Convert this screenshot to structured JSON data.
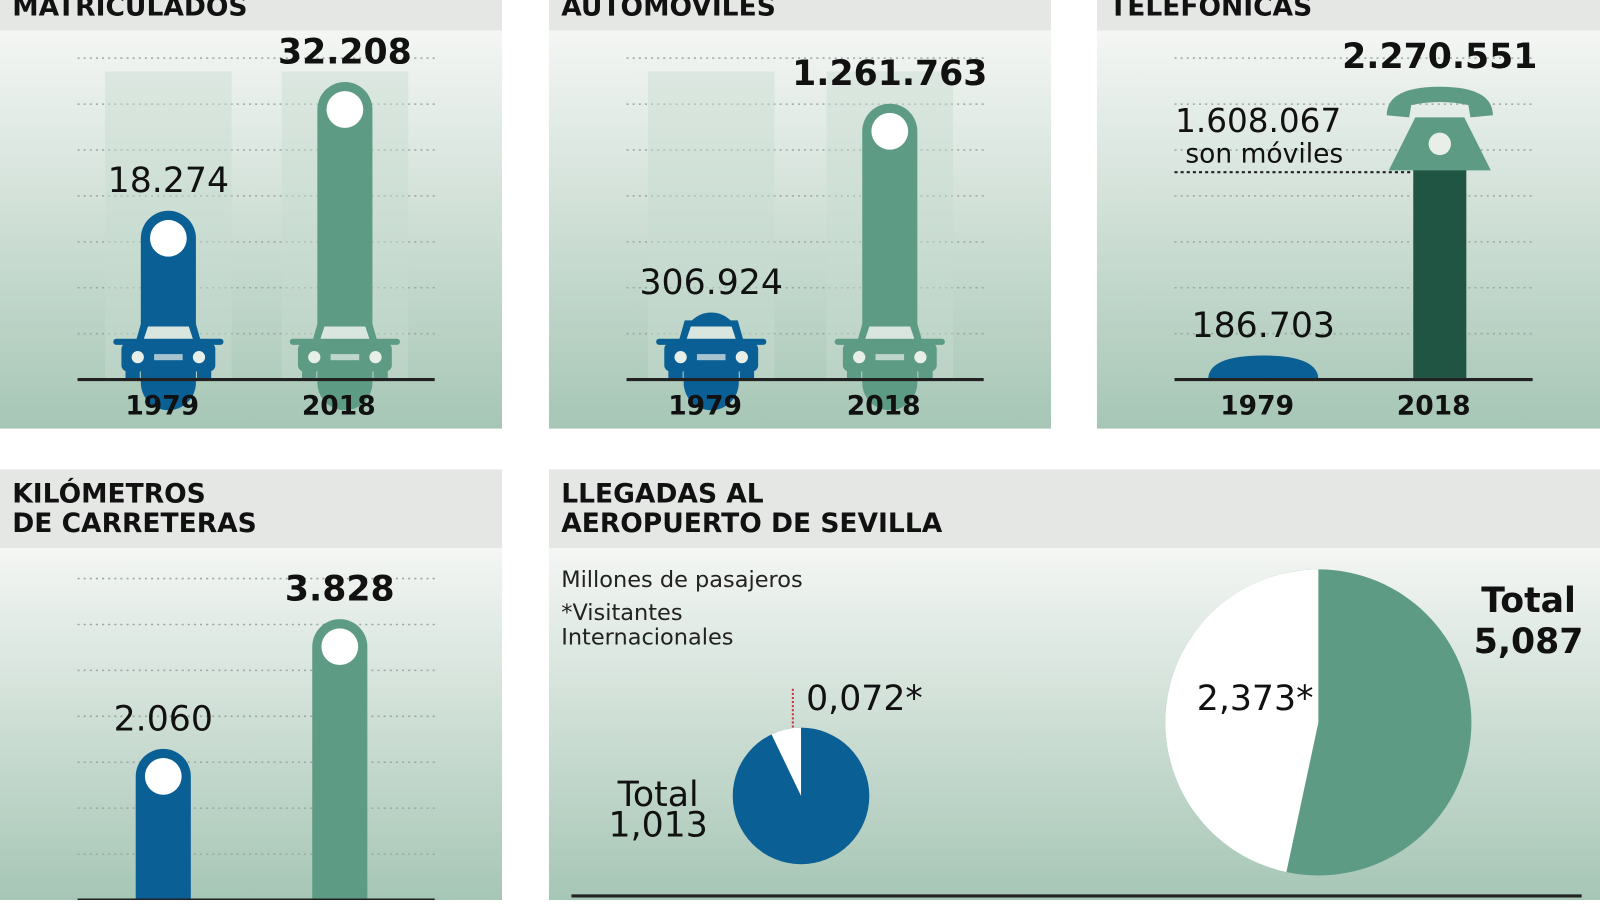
{
  "chart_data": [
    {
      "type": "bar",
      "title": [
        "MATRICULADOS"
      ],
      "categories": [
        "1979",
        "2018"
      ],
      "values": [
        18274,
        32208
      ],
      "value_labels": [
        "18.274",
        "32.208"
      ],
      "colors": [
        "#0a5f94",
        "#5e9b85"
      ],
      "ylim": [
        0,
        36000
      ]
    },
    {
      "type": "bar",
      "title": [
        "AUTOMOVILES"
      ],
      "categories": [
        "1979",
        "2018"
      ],
      "values": [
        306924,
        1261763
      ],
      "value_labels": [
        "306.924",
        "1.261.763"
      ],
      "colors": [
        "#0a5f94",
        "#5e9b85"
      ],
      "ylim": [
        0,
        1400000
      ]
    },
    {
      "type": "bar",
      "title": [
        "TELEFONICAS"
      ],
      "categories": [
        "1979",
        "2018"
      ],
      "values": [
        186703,
        2270551
      ],
      "value_labels": [
        "186.703",
        "2.270.551"
      ],
      "colors": [
        "#0a5f94",
        "#1f5542"
      ],
      "ylim": [
        0,
        2500000
      ],
      "reference": {
        "value": 1608067,
        "value_label": "1.608.067",
        "text": "son móviles"
      }
    },
    {
      "type": "bar",
      "title": [
        "KILÓMETROS",
        "DE CARRETERAS"
      ],
      "categories": [
        null,
        null
      ],
      "values": [
        2060,
        3828
      ],
      "value_labels": [
        "2.060",
        "3.828"
      ],
      "colors": [
        "#0a5f94",
        "#5e9b85"
      ],
      "ylim": [
        0,
        4200
      ]
    },
    {
      "type": "pie",
      "title": [
        "LLEGADAS AL",
        "AEROPUERTO DE SEVILLA"
      ],
      "subtitle": "Millones de pasajeros",
      "note": [
        "*Visitantes",
        "Internacionales"
      ],
      "total_text": "Total",
      "pies": [
        {
          "total": 1.013,
          "total_label": "1,013",
          "international": 0.072,
          "international_label": "0,072*",
          "color": "#0a5f94"
        },
        {
          "total": 5.087,
          "total_label": "5,087",
          "international": 2.373,
          "international_label": "2,373*",
          "color": "#5e9b85"
        }
      ]
    }
  ]
}
